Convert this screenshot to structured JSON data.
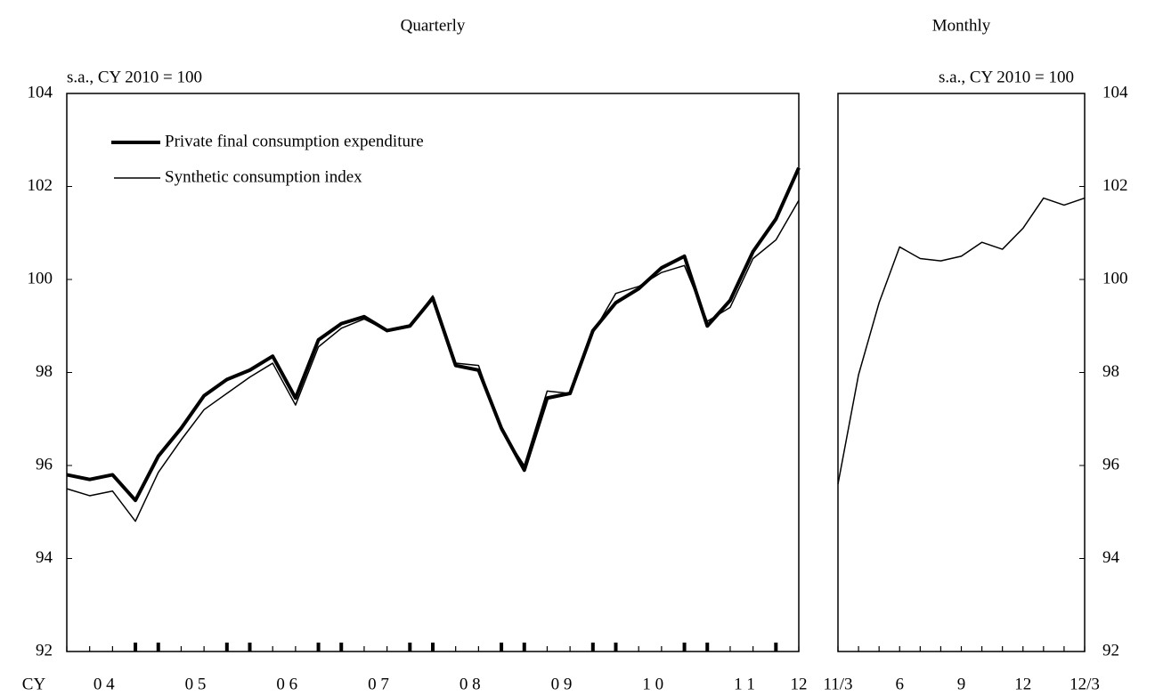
{
  "chart_data": [
    {
      "type": "line",
      "title": "Quarterly",
      "ylabel": "s.a., CY 2010 = 100",
      "xlabel": "CY",
      "yaxis": "left",
      "categories": [
        null,
        "0 4",
        null,
        null,
        null,
        "0 5",
        null,
        null,
        null,
        "0 6",
        null,
        null,
        null,
        "0 7",
        null,
        null,
        null,
        "0 8",
        null,
        null,
        null,
        "0 9",
        null,
        null,
        null,
        "1 0",
        null,
        null,
        null,
        "1 1",
        null,
        null,
        "12"
      ],
      "ylim": [
        92,
        104
      ],
      "yticks": [
        92,
        94,
        96,
        98,
        100,
        102,
        104
      ],
      "legend": "upper left",
      "series": [
        {
          "name": "Private final consumption expenditure",
          "color": "#000000",
          "width": 4,
          "values": [
            95.8,
            95.7,
            95.8,
            95.25,
            96.2,
            96.8,
            97.5,
            97.85,
            98.05,
            98.35,
            97.45,
            98.7,
            99.05,
            99.2,
            98.9,
            99.0,
            99.6,
            98.15,
            98.05,
            96.8,
            95.9,
            97.45,
            97.55,
            98.9,
            99.5,
            99.8,
            100.25,
            100.5,
            99.0,
            99.55,
            100.6,
            101.3,
            102.4
          ]
        },
        {
          "name": "Synthetic consumption index",
          "color": "#000000",
          "width": 1.5,
          "values": [
            95.5,
            95.35,
            95.45,
            94.8,
            95.85,
            96.55,
            97.2,
            97.55,
            97.9,
            98.2,
            97.3,
            98.55,
            98.95,
            99.15,
            98.9,
            99.0,
            99.65,
            98.2,
            98.15,
            96.75,
            96.0,
            97.6,
            97.55,
            98.85,
            99.7,
            99.85,
            100.15,
            100.3,
            99.1,
            99.4,
            100.45,
            100.85,
            101.7
          ]
        }
      ]
    },
    {
      "type": "line",
      "title": "Monthly",
      "ylabel": "s.a., CY 2010 = 100",
      "yaxis": "right",
      "categories": [
        "11/3",
        null,
        null,
        "6",
        null,
        null,
        "9",
        null,
        null,
        "12",
        null,
        null,
        "12/3"
      ],
      "ylim": [
        92,
        104
      ],
      "yticks": [
        92,
        94,
        96,
        98,
        100,
        102,
        104
      ],
      "series": [
        {
          "color": "#000000",
          "width": 1.5,
          "values": [
            95.6,
            97.95,
            99.5,
            100.7,
            100.45,
            100.4,
            100.5,
            100.8,
            100.65,
            101.1,
            101.75,
            101.6,
            101.75
          ]
        }
      ]
    }
  ]
}
